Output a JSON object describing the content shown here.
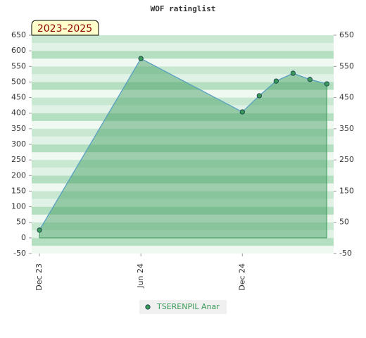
{
  "chart_data": {
    "type": "area",
    "title": "WOF ratinglist",
    "badge": "2023–2025",
    "x": [
      0,
      6,
      12,
      13,
      14,
      15,
      16,
      17
    ],
    "xlim": [
      -0.46,
      17.4
    ],
    "xticks": [
      {
        "value": 0,
        "label": "Dec 23"
      },
      {
        "value": 6,
        "label": "Jun 24"
      },
      {
        "value": 12,
        "label": "Dec 24"
      }
    ],
    "series": [
      {
        "name": "TSERENPIL Anar",
        "color": "#3a9a5a",
        "values": [
          25,
          575,
          404,
          456,
          503,
          528,
          508,
          494
        ]
      }
    ],
    "ylim": [
      -50,
      650
    ],
    "yticks": [
      -50,
      0,
      50,
      100,
      150,
      200,
      250,
      300,
      350,
      400,
      450,
      500,
      550,
      600,
      650
    ],
    "y2lim": [
      -50,
      650
    ],
    "y2ticks": [
      -50,
      50,
      150,
      250,
      350,
      450,
      550,
      650
    ],
    "grid": true,
    "legend": "bottom"
  }
}
